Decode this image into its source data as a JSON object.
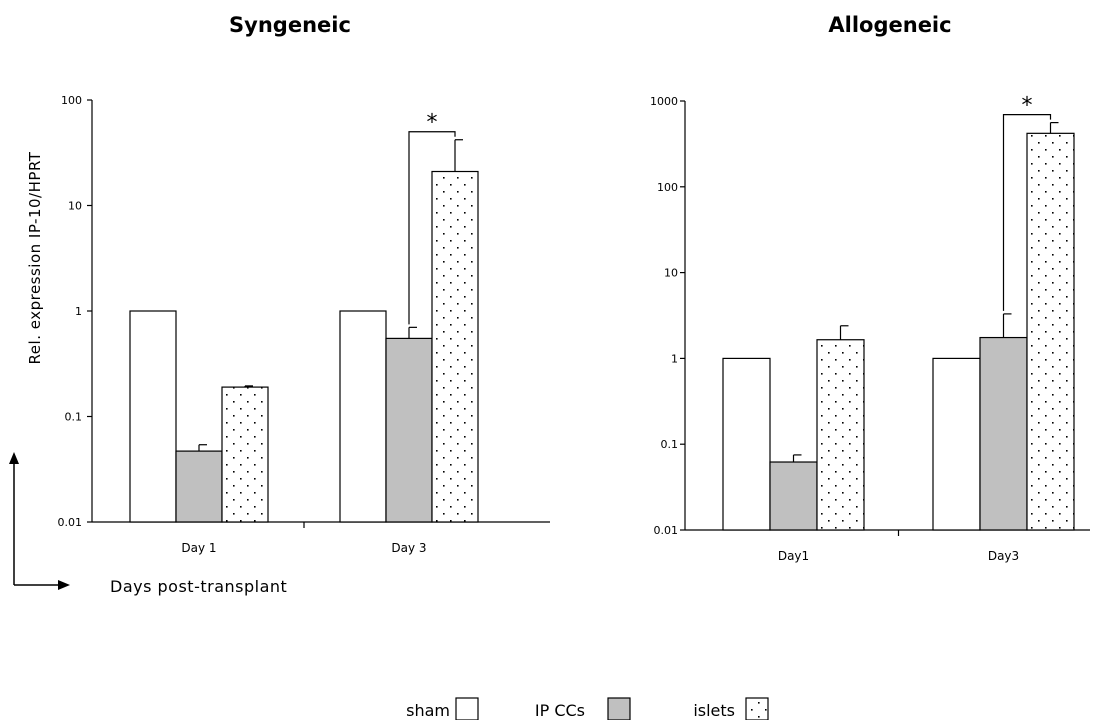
{
  "legend": [
    {
      "label": "sham",
      "pattern": "white"
    },
    {
      "label": "IP CCs",
      "pattern": "gray"
    },
    {
      "label": "islets",
      "pattern": "dots"
    }
  ],
  "colors": {
    "sham": "#ffffff",
    "ipccs": "#c0c0c0",
    "islets": "#ffffff",
    "dots": "#000000",
    "ink": "#000000"
  },
  "annotation": {
    "axis_note": "Days post-transplant"
  },
  "chart_data": [
    {
      "type": "bar",
      "title": "Syngeneic",
      "ylabel": "Rel. expression IP-10/HPRT",
      "xlabel": "",
      "yscale": "log",
      "ylim": [
        0.01,
        100
      ],
      "yticks": [
        0.01,
        0.1,
        1,
        10,
        100
      ],
      "ytick_labels": [
        "0.01",
        "0.1",
        "1",
        "10",
        "100"
      ],
      "categories": [
        "Day 1",
        "Day 3"
      ],
      "series": [
        {
          "name": "sham",
          "values": [
            1,
            1
          ],
          "errors": [
            null,
            null
          ]
        },
        {
          "name": "IP CCs",
          "values": [
            0.047,
            0.55
          ],
          "errors": [
            0.054,
            0.7
          ]
        },
        {
          "name": "islets",
          "values": [
            0.19,
            21
          ],
          "errors": [
            0.195,
            42
          ]
        }
      ],
      "significance": [
        {
          "category": "Day 3",
          "between": [
            "IP CCs",
            "islets"
          ],
          "label": "*"
        }
      ]
    },
    {
      "type": "bar",
      "title": "Allogeneic",
      "ylabel": "",
      "xlabel": "",
      "yscale": "log",
      "ylim": [
        0.01,
        1000
      ],
      "yticks": [
        0.01,
        0.1,
        1,
        10,
        100,
        1000
      ],
      "ytick_labels": [
        "0.01",
        "0.1",
        "1",
        "10",
        "100",
        "1000"
      ],
      "categories": [
        "Day1",
        "Day3"
      ],
      "series": [
        {
          "name": "sham",
          "values": [
            1,
            1
          ],
          "errors": [
            null,
            null
          ]
        },
        {
          "name": "IP CCs",
          "values": [
            0.062,
            1.75
          ],
          "errors": [
            0.075,
            3.3
          ]
        },
        {
          "name": "islets",
          "values": [
            1.65,
            420
          ],
          "errors": [
            2.4,
            560
          ]
        }
      ],
      "significance": [
        {
          "category": "Day3",
          "between": [
            "IP CCs",
            "islets"
          ],
          "label": "*"
        }
      ]
    }
  ]
}
